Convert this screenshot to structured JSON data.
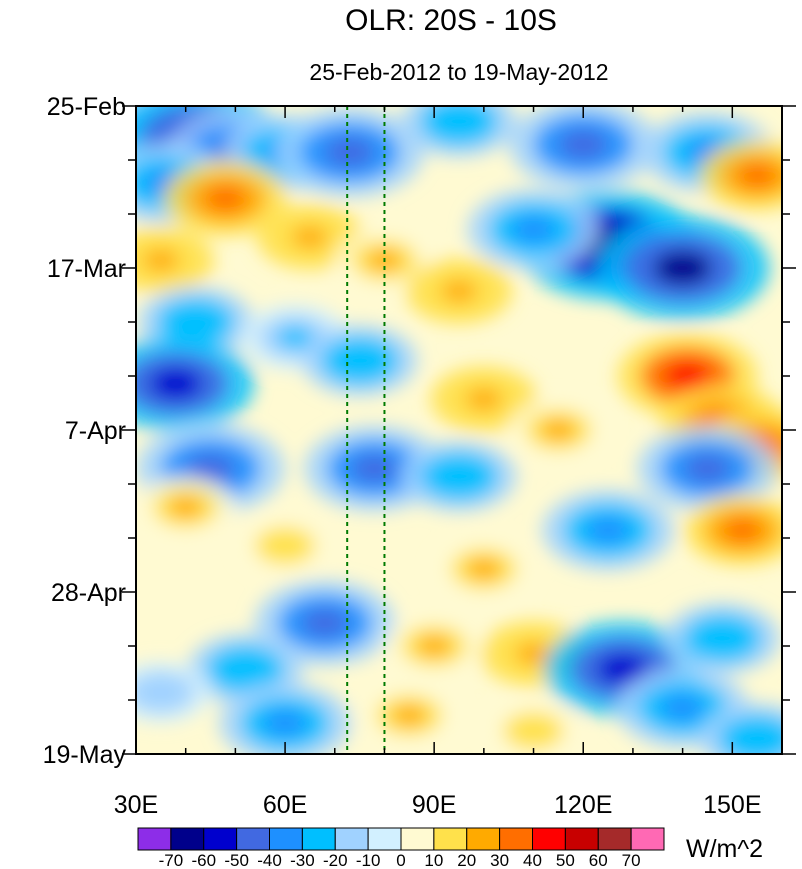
{
  "chart_data": {
    "type": "heatmap",
    "title": "OLR: 20S - 10S",
    "subtitle": "25-Feb-2012 to 19-May-2012",
    "units": "W/m^2",
    "x_range": [
      30,
      160
    ],
    "x_ticks": [
      {
        "value": 30,
        "label": "30E"
      },
      {
        "value": 60,
        "label": "60E"
      },
      {
        "value": 90,
        "label": "90E"
      },
      {
        "value": 120,
        "label": "120E"
      },
      {
        "value": 150,
        "label": "150E"
      }
    ],
    "y_ticks": [
      {
        "day": 0,
        "label": "25-Feb"
      },
      {
        "day": 21,
        "label": "17-Mar"
      },
      {
        "day": 42,
        "label": "7-Apr"
      },
      {
        "day": 63,
        "label": "28-Apr"
      },
      {
        "day": 84,
        "label": "19-May"
      }
    ],
    "reference_lines_lon": [
      72.5,
      80
    ],
    "colorbar": {
      "levels": [
        "-70",
        "-60",
        "-50",
        "-40",
        "-30",
        "-20",
        "-10",
        "0",
        "10",
        "20",
        "30",
        "40",
        "50",
        "60",
        "70"
      ],
      "colors": [
        "#8d2de8",
        "#00008b",
        "#0000cd",
        "#4169e1",
        "#1e90ff",
        "#00bfff",
        "#a0d2ff",
        "#d2f0ff",
        "#fffad2",
        "#ffe14b",
        "#ffaa00",
        "#ff6e00",
        "#ff0000",
        "#c80000",
        "#a52a2a",
        "#ff69b4"
      ]
    },
    "features": [
      {
        "lon": 35,
        "day": 3,
        "value": -40
      },
      {
        "lon": 42,
        "day": 4,
        "value": -60
      },
      {
        "lon": 50,
        "day": 6,
        "value": -45
      },
      {
        "lon": 60,
        "day": 6,
        "value": -35
      },
      {
        "lon": 73,
        "day": 6,
        "value": -50
      },
      {
        "lon": 95,
        "day": 2,
        "value": -30
      },
      {
        "lon": 120,
        "day": 5,
        "value": -50
      },
      {
        "lon": 145,
        "day": 6,
        "value": -40
      },
      {
        "lon": 155,
        "day": 9,
        "value": 30
      },
      {
        "lon": 36,
        "day": 10,
        "value": -40
      },
      {
        "lon": 48,
        "day": 12,
        "value": 35
      },
      {
        "lon": 65,
        "day": 17,
        "value": 25
      },
      {
        "lon": 80,
        "day": 20,
        "value": 20
      },
      {
        "lon": 95,
        "day": 24,
        "value": 25
      },
      {
        "lon": 125,
        "day": 18,
        "value": -70
      },
      {
        "lon": 140,
        "day": 21,
        "value": -65
      },
      {
        "lon": 110,
        "day": 16,
        "value": -40
      },
      {
        "lon": 35,
        "day": 20,
        "value": 25
      },
      {
        "lon": 42,
        "day": 28,
        "value": -30
      },
      {
        "lon": 62,
        "day": 30,
        "value": -25
      },
      {
        "lon": 75,
        "day": 33,
        "value": -30
      },
      {
        "lon": 38,
        "day": 36,
        "value": -55
      },
      {
        "lon": 100,
        "day": 38,
        "value": 25
      },
      {
        "lon": 141,
        "day": 35,
        "value": 45
      },
      {
        "lon": 148,
        "day": 41,
        "value": 35
      },
      {
        "lon": 156,
        "day": 44,
        "value": 35
      },
      {
        "lon": 115,
        "day": 42,
        "value": 20
      },
      {
        "lon": 45,
        "day": 47,
        "value": -50
      },
      {
        "lon": 78,
        "day": 47,
        "value": -45
      },
      {
        "lon": 95,
        "day": 48,
        "value": -30
      },
      {
        "lon": 145,
        "day": 47,
        "value": -45
      },
      {
        "lon": 125,
        "day": 55,
        "value": -40
      },
      {
        "lon": 152,
        "day": 55,
        "value": 30
      },
      {
        "lon": 40,
        "day": 52,
        "value": 20
      },
      {
        "lon": 60,
        "day": 57,
        "value": 15
      },
      {
        "lon": 100,
        "day": 60,
        "value": 20
      },
      {
        "lon": 68,
        "day": 67,
        "value": -45
      },
      {
        "lon": 90,
        "day": 70,
        "value": 20
      },
      {
        "lon": 110,
        "day": 71,
        "value": 25
      },
      {
        "lon": 52,
        "day": 73,
        "value": -30
      },
      {
        "lon": 128,
        "day": 73,
        "value": -55
      },
      {
        "lon": 148,
        "day": 69,
        "value": -30
      },
      {
        "lon": 35,
        "day": 76,
        "value": -20
      },
      {
        "lon": 60,
        "day": 80,
        "value": -40
      },
      {
        "lon": 85,
        "day": 79,
        "value": 20
      },
      {
        "lon": 110,
        "day": 81,
        "value": 15
      },
      {
        "lon": 140,
        "day": 78,
        "value": -40
      },
      {
        "lon": 155,
        "day": 82,
        "value": -30
      }
    ]
  }
}
